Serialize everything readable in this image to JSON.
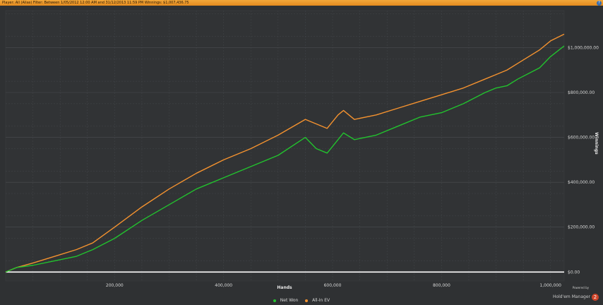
{
  "header": {
    "player_label": "Player:",
    "player": "All (Alias)",
    "filter_label": "Filter:",
    "filter": "Between 1/05/2012 12:00 AM and 31/12/2013 11:59 PM",
    "winnings_label": "Winnings:",
    "winnings": "$1,007,436.75",
    "help_icon": "?"
  },
  "brand": {
    "powered_by": "Powered by",
    "name": "Hold'em Manager",
    "logo": "2"
  },
  "chart_data": {
    "type": "line",
    "xlabel": "Hands",
    "ylabel": "Winnings",
    "xlim": [
      0,
      1025000
    ],
    "ylim": [
      -40000,
      1165000
    ],
    "x_ticks": [
      200000,
      400000,
      600000,
      800000,
      1000000
    ],
    "x_tick_labels": [
      "200,000",
      "400,000",
      "600,000",
      "800,000",
      "1,000,000"
    ],
    "y_ticks": [
      0,
      200000,
      400000,
      600000,
      800000,
      1000000
    ],
    "y_tick_labels": [
      "$0.00",
      "$200,000.00",
      "$400,000.00",
      "$600,000.00",
      "$800,000.00",
      "$1,000,000.00"
    ],
    "grid": true,
    "legend_position": "bottom",
    "colors": {
      "net_won": "#22c22e",
      "all_in_ev": "#f4922f",
      "zero_line": "#ffffff"
    },
    "series": [
      {
        "name": "Net Won",
        "x": [
          0,
          20000,
          50000,
          90000,
          130000,
          160000,
          200000,
          250000,
          300000,
          350000,
          400000,
          450000,
          500000,
          550000,
          570000,
          590000,
          610000,
          620000,
          640000,
          680000,
          720000,
          760000,
          800000,
          840000,
          880000,
          900000,
          920000,
          940000,
          980000,
          1000000,
          1025000
        ],
        "y": [
          0,
          20000,
          30000,
          50000,
          70000,
          100000,
          150000,
          230000,
          300000,
          370000,
          420000,
          470000,
          520000,
          600000,
          550000,
          530000,
          590000,
          620000,
          590000,
          610000,
          650000,
          690000,
          710000,
          750000,
          800000,
          820000,
          830000,
          860000,
          910000,
          960000,
          1007436.75
        ]
      },
      {
        "name": "All-In EV",
        "x": [
          0,
          20000,
          50000,
          90000,
          130000,
          160000,
          200000,
          250000,
          300000,
          350000,
          400000,
          450000,
          500000,
          550000,
          570000,
          590000,
          610000,
          620000,
          640000,
          680000,
          720000,
          760000,
          800000,
          840000,
          880000,
          900000,
          920000,
          940000,
          980000,
          1000000,
          1025000
        ],
        "y": [
          0,
          20000,
          40000,
          70000,
          100000,
          130000,
          200000,
          290000,
          370000,
          440000,
          500000,
          550000,
          610000,
          680000,
          660000,
          640000,
          700000,
          720000,
          680000,
          700000,
          730000,
          760000,
          790000,
          820000,
          860000,
          880000,
          900000,
          930000,
          990000,
          1030000,
          1060000
        ]
      }
    ]
  }
}
